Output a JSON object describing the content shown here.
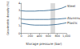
{
  "chart_data": {
    "type": "line",
    "x_label": "Storage pressure (bar)",
    "y_label": "Gravimetric density (%)",
    "x": [
      0,
      100,
      200,
      300,
      400,
      500,
      600,
      700,
      800,
      900,
      1000
    ],
    "series": [
      {
        "name": "Steel",
        "color": "#2b5f8a",
        "values": [
          3.0,
          2.95,
          2.95,
          2.95,
          3.0,
          3.0,
          3.05,
          3.1,
          3.2,
          3.35,
          3.6
        ]
      },
      {
        "name": "Aluminum",
        "color": "#2b5f8a",
        "values": [
          1.9,
          1.85,
          1.85,
          1.85,
          1.85,
          1.85,
          1.85,
          1.9,
          1.9,
          1.95,
          2.0
        ]
      },
      {
        "name": "Plastic",
        "color": "#2b5f8a",
        "values": [
          1.35,
          1.25,
          1.15,
          1.1,
          1.1,
          1.1,
          1.1,
          1.15,
          1.2,
          1.3,
          1.4
        ]
      }
    ],
    "highlight_x": [
      650,
      750
    ],
    "xlim": [
      0,
      1000
    ],
    "xticks": [
      0,
      200,
      400,
      600,
      800,
      1000
    ],
    "ylim": [
      0,
      4
    ],
    "yticks": [
      0,
      1,
      2,
      3,
      4
    ],
    "grid": false
  }
}
